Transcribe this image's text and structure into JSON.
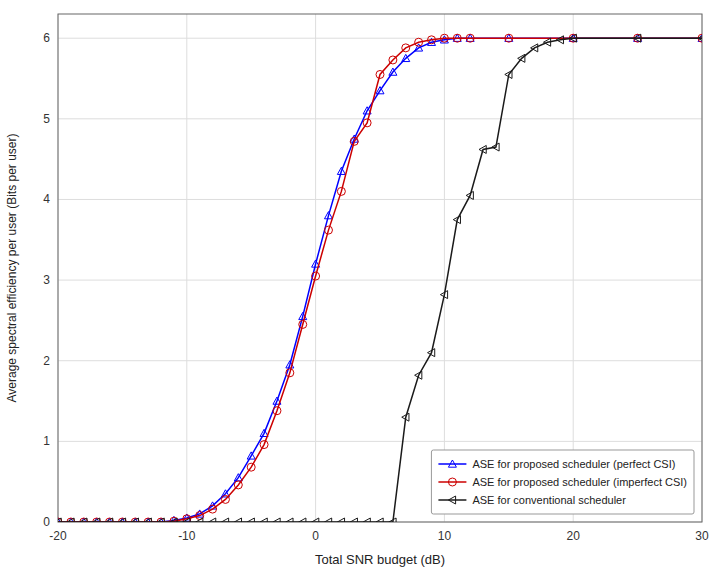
{
  "chart_data": {
    "type": "line",
    "xlabel": "Total SNR budget (dB)",
    "ylabel": "Average spectral efficiency per user (Bits per user)",
    "xlim": [
      -20,
      30
    ],
    "ylim": [
      0,
      6.3
    ],
    "xticks": [
      -20,
      -10,
      0,
      10,
      20,
      30
    ],
    "yticks": [
      0,
      1,
      2,
      3,
      4,
      5,
      6
    ],
    "grid": true,
    "legend": "lower right",
    "series": [
      {
        "name": "ASE for proposed scheduler (perfect CSI)",
        "color": "#0000ff",
        "marker": "triangle-up",
        "x": [
          -20,
          -19,
          -18,
          -17,
          -16,
          -15,
          -14,
          -13,
          -12,
          -11,
          -10,
          -9,
          -8,
          -7,
          -6,
          -5,
          -4,
          -3,
          -2,
          -1,
          0,
          1,
          2,
          3,
          4,
          5,
          6,
          7,
          8,
          9,
          10,
          11,
          12,
          15,
          20,
          25,
          30
        ],
        "values": [
          0.0,
          0.0,
          0.0,
          0.0,
          0.0,
          0.0,
          0.0,
          0.0,
          0.0,
          0.02,
          0.05,
          0.1,
          0.2,
          0.35,
          0.55,
          0.82,
          1.1,
          1.5,
          1.95,
          2.55,
          3.2,
          3.8,
          4.35,
          4.75,
          5.1,
          5.35,
          5.58,
          5.75,
          5.88,
          5.95,
          5.98,
          6.0,
          6.0,
          6.0,
          6.0,
          6.0,
          6.0
        ]
      },
      {
        "name": "ASE for proposed scheduler (imperfect CSI)",
        "color": "#cc0000",
        "marker": "circle",
        "x": [
          -20,
          -19,
          -18,
          -17,
          -16,
          -15,
          -14,
          -13,
          -12,
          -11,
          -10,
          -9,
          -8,
          -7,
          -6,
          -5,
          -4,
          -3,
          -2,
          -1,
          0,
          1,
          2,
          3,
          4,
          5,
          6,
          7,
          8,
          9,
          10,
          11,
          12,
          15,
          20,
          25,
          30
        ],
        "values": [
          0.0,
          0.0,
          0.0,
          0.0,
          0.0,
          0.0,
          0.0,
          0.0,
          0.0,
          0.01,
          0.04,
          0.08,
          0.16,
          0.28,
          0.46,
          0.68,
          0.96,
          1.38,
          1.85,
          2.45,
          3.05,
          3.62,
          4.1,
          4.72,
          4.95,
          5.55,
          5.73,
          5.88,
          5.95,
          5.98,
          6.0,
          6.0,
          6.0,
          6.0,
          6.0,
          6.0,
          6.0
        ]
      },
      {
        "name": "ASE for conventional scheduler",
        "color": "#1a1a1a",
        "marker": "triangle-left",
        "x": [
          -20,
          -19,
          -18,
          -17,
          -16,
          -15,
          -14,
          -13,
          -12,
          -11,
          -10,
          -9,
          -8,
          -7,
          -6,
          -5,
          -4,
          -3,
          -2,
          -1,
          0,
          1,
          2,
          3,
          4,
          5,
          6,
          7,
          8,
          9,
          10,
          11,
          12,
          13,
          14,
          15,
          16,
          17,
          18,
          19,
          20,
          25,
          30
        ],
        "values": [
          0.0,
          0.0,
          0.0,
          0.0,
          0.0,
          0.0,
          0.0,
          0.0,
          0.0,
          0.0,
          0.0,
          0.0,
          0.0,
          0.0,
          0.0,
          0.0,
          0.0,
          0.0,
          0.0,
          0.0,
          0.0,
          0.0,
          0.0,
          0.0,
          0.0,
          0.0,
          0.0,
          1.3,
          1.82,
          2.1,
          2.82,
          3.75,
          4.05,
          4.62,
          4.65,
          5.55,
          5.75,
          5.88,
          5.95,
          5.98,
          6.0,
          6.0,
          6.0
        ]
      }
    ]
  }
}
